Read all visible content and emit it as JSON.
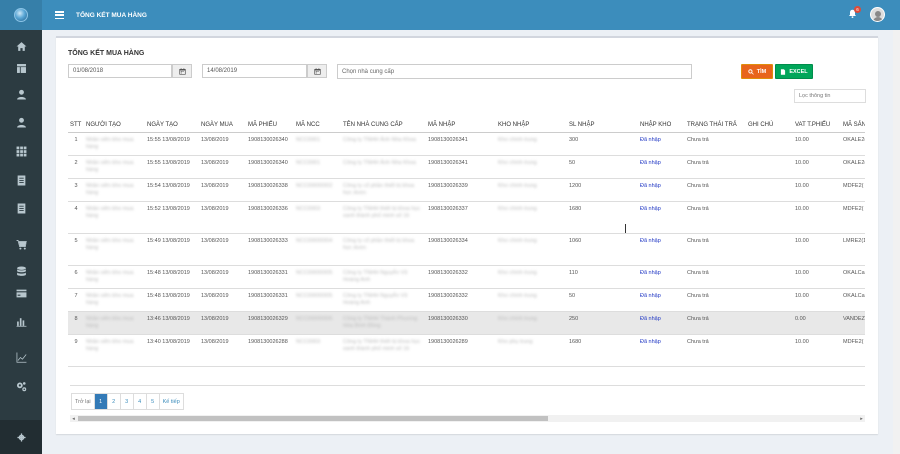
{
  "header": {
    "title": "TỔNG KẾT MUA HÀNG",
    "notification_count": "6"
  },
  "sidebar": {
    "icons": [
      "home-icon",
      "table-icon",
      "user-icon",
      "user-icon-2",
      "apps-icon",
      "document-icon",
      "document-icon-2",
      "cart-icon",
      "database-icon",
      "card-icon",
      "bar-chart-icon",
      "line-chart-icon",
      "cogs-icon"
    ]
  },
  "page": {
    "title": "TỔNG KẾT MUA HÀNG",
    "date_from": "01/08/2018",
    "date_to": "14/08/2019",
    "supplier_placeholder": "Chọn nhà cung cấp",
    "search_label": "TÌM",
    "excel_label": "EXCEL",
    "filter_placeholder": "Lọc thông tin"
  },
  "table": {
    "columns": [
      "STT",
      "NGƯỜI TẠO",
      "NGÀY TẠO",
      "NGÀY MUA",
      "MÃ PHIẾU",
      "MÃ NCC",
      "TÊN NHÀ CUNG CẤP",
      "MÃ NHẬP",
      "KHO NHẬP",
      "SL NHẬP",
      "NHẬP KHO",
      "TRẠNG THÁI TRẢ",
      "GHI CHÚ",
      "VAT T.PHIẾU",
      "MÃ SẢN"
    ],
    "rows": [
      {
        "stt": "1",
        "nguoi_tao": "Nhân viên kho mua hàng",
        "ngay_tao": "15:55 13/08/2019",
        "ngay_mua": "13/08/2019",
        "ma_phieu": "1908130026340",
        "ma_ncc": "NCC0001",
        "ten_ncc": "Công ty TNHH Ảnh Nha Khoa",
        "ma_nhap": "1908130026341",
        "kho_nhap": "Kho chính trung",
        "sl_nhap": "300",
        "nhap_kho": "Đã nhập",
        "trang_thai": "Chưa trả",
        "ghi_chu": "",
        "vat": "10.00",
        "ma_san": "OKALE2("
      },
      {
        "stt": "2",
        "nguoi_tao": "Nhân viên kho mua hàng",
        "ngay_tao": "15:55 13/08/2019",
        "ngay_mua": "13/08/2019",
        "ma_phieu": "1908130026340",
        "ma_ncc": "NCC0001",
        "ten_ncc": "Công ty TNHH Ảnh Nha Khoa",
        "ma_nhap": "1908130026341",
        "kho_nhap": "Kho chính trung",
        "sl_nhap": "50",
        "nhap_kho": "Đã nhập",
        "trang_thai": "Chưa trả",
        "ghi_chu": "",
        "vat": "10.00",
        "ma_san": "OKALE2("
      },
      {
        "stt": "3",
        "nguoi_tao": "Nhân viên kho mua hàng",
        "ngay_tao": "15:54 13/08/2019",
        "ngay_mua": "13/08/2019",
        "ma_phieu": "1908130026338",
        "ma_ncc": "NCC00000002",
        "ten_ncc": "Công ty cổ phần thiết bị khoa học dược",
        "ma_nhap": "1908130026339",
        "kho_nhap": "Kho chính trung",
        "sl_nhap": "1200",
        "nhap_kho": "Đã nhập",
        "trang_thai": "Chưa trả",
        "ghi_chu": "",
        "vat": "10.00",
        "ma_san": "MDFE2("
      },
      {
        "stt": "4",
        "nguoi_tao": "Nhân viên kho mua hàng",
        "ngay_tao": "15:52 13/08/2019",
        "ngay_mua": "13/08/2019",
        "ma_phieu": "1908130026336",
        "ma_ncc": "NCC0003",
        "ten_ncc": "Công ty TNHH thiết bị khoa học xanh thành phố minh số 16",
        "ma_nhap": "1908130026337",
        "kho_nhap": "Kho chính trung",
        "sl_nhap": "1680",
        "nhap_kho": "Đã nhập",
        "trang_thai": "Chưa trả",
        "ghi_chu": "",
        "vat": "10.00",
        "ma_san": "MDFE2("
      },
      {
        "stt": "5",
        "nguoi_tao": "Nhân viên kho mua hàng",
        "ngay_tao": "15:49 13/08/2019",
        "ngay_mua": "13/08/2019",
        "ma_phieu": "1908130026333",
        "ma_ncc": "NCC00000004",
        "ten_ncc": "Công ty cổ phần thiết bị khoa học dược",
        "ma_nhap": "1908130026334",
        "kho_nhap": "Kho chính trung",
        "sl_nhap": "1060",
        "nhap_kho": "Đã nhập",
        "trang_thai": "Chưa trả",
        "ghi_chu": "",
        "vat": "10.00",
        "ma_san": "LMRE2(1"
      },
      {
        "stt": "6",
        "nguoi_tao": "Nhân viên kho mua hàng",
        "ngay_tao": "15:48 13/08/2019",
        "ngay_mua": "13/08/2019",
        "ma_phieu": "1908130026331",
        "ma_ncc": "NCC00000005",
        "ten_ncc": "Công ty TNHH Nguyễn Vũ Hoàng Anh",
        "ma_nhap": "1908130026332",
        "kho_nhap": "Kho chính trung",
        "sl_nhap": "110",
        "nhap_kho": "Đã nhập",
        "trang_thai": "Chưa trả",
        "ghi_chu": "",
        "vat": "10.00",
        "ma_san": "OKALCa("
      },
      {
        "stt": "7",
        "nguoi_tao": "Nhân viên kho mua hàng",
        "ngay_tao": "15:48 13/08/2019",
        "ngay_mua": "13/08/2019",
        "ma_phieu": "1908130026331",
        "ma_ncc": "NCC00000005",
        "ten_ncc": "Công ty TNHH Nguyễn Vũ Hoàng Anh",
        "ma_nhap": "1908130026332",
        "kho_nhap": "Kho chính trung",
        "sl_nhap": "50",
        "nhap_kho": "Đã nhập",
        "trang_thai": "Chưa trả",
        "ghi_chu": "",
        "vat": "10.00",
        "ma_san": "OKALCa("
      },
      {
        "stt": "8",
        "nguoi_tao": "Nhân viên kho mua hàng",
        "ngay_tao": "13:46 13/08/2019",
        "ngay_mua": "13/08/2019",
        "ma_phieu": "1908130026329",
        "ma_ncc": "NCC00000006",
        "ten_ncc": "Công ty TNHH Thành Phương Hòa Bình Đồng",
        "ma_nhap": "1908130026330",
        "kho_nhap": "Kho chính trung",
        "sl_nhap": "250",
        "nhap_kho": "Đã nhập",
        "trang_thai": "Chưa trả",
        "ghi_chu": "",
        "vat": "0.00",
        "ma_san": "VANDEZ("
      },
      {
        "stt": "9",
        "nguoi_tao": "Nhân viên kho mua hàng",
        "ngay_tao": "13:40 13/08/2019",
        "ngay_mua": "13/08/2019",
        "ma_phieu": "1908130026288",
        "ma_ncc": "NCC0003",
        "ten_ncc": "Công ty TNHH thiết bị khoa học xanh thành phố minh số 16",
        "ma_nhap": "1908130026289",
        "kho_nhap": "Kho phụ trung",
        "sl_nhap": "1680",
        "nhap_kho": "Đã nhập",
        "trang_thai": "Chưa trả",
        "ghi_chu": "",
        "vat": "10.00",
        "ma_san": "MDFE2("
      }
    ]
  },
  "pagination": {
    "prev": "Trở lại",
    "pages": [
      "1",
      "2",
      "3",
      "4",
      "5"
    ],
    "active": "1",
    "next": "Kế tiếp"
  },
  "colors": {
    "header": "#3c8dbc",
    "sidebar": "#2c3b41",
    "search": "#e8641b",
    "excel": "#00a65a",
    "link": "#2239c5"
  }
}
